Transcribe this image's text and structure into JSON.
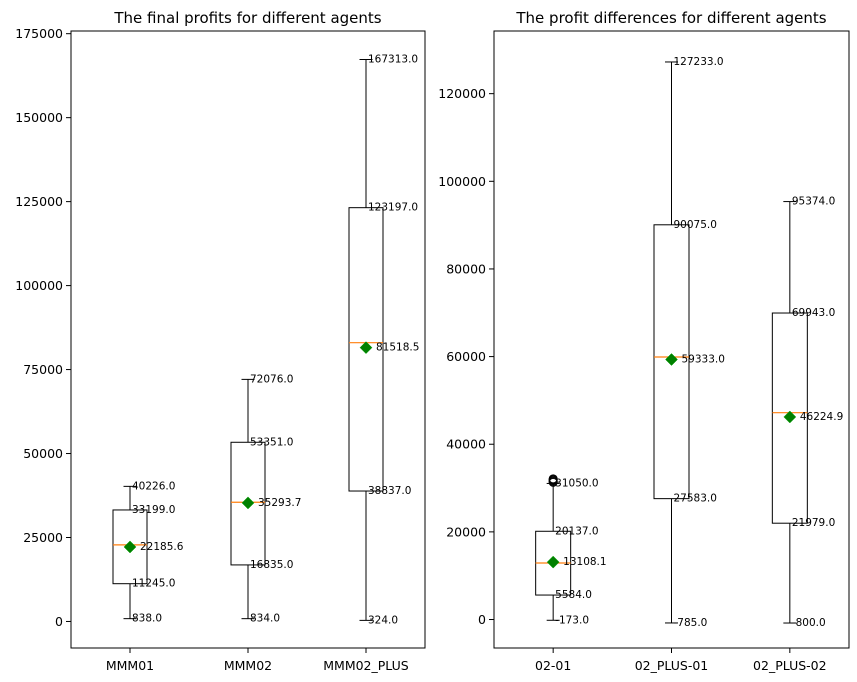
{
  "chart_data": [
    {
      "type": "box",
      "title": "The final profits for different agents",
      "categories": [
        "MMM01",
        "MMM02",
        "MMM02_PLUS"
      ],
      "ylim": [
        -7900,
        175800
      ],
      "yticks": [
        0,
        25000,
        50000,
        75000,
        100000,
        125000,
        150000,
        175000
      ],
      "ytick_labels": [
        "0",
        "25000",
        "50000",
        "75000",
        "100000",
        "125000",
        "150000",
        "175000"
      ],
      "grid": false,
      "boxes": [
        {
          "min": 838,
          "q1": 11245,
          "median": 22800,
          "q3": 33199,
          "max": 40226,
          "mean": 22185.6,
          "labels": {
            "max": "40226.0",
            "q3": "33199.0",
            "mean": "22185.6",
            "q1": "11245.0",
            "min": "838.0"
          },
          "outliers": []
        },
        {
          "min": 834,
          "q1": 16835,
          "median": 35500,
          "q3": 53351,
          "max": 72076,
          "mean": 35293.7,
          "labels": {
            "max": "72076.0",
            "q3": "53351.0",
            "mean": "35293.7",
            "q1": "16835.0",
            "min": "834.0"
          },
          "outliers": []
        },
        {
          "min": 324,
          "q1": 38837,
          "median": 83000,
          "q3": 123197,
          "max": 167313,
          "mean": 81518.5,
          "labels": {
            "max": "167313.0",
            "q3": "123197.0",
            "mean": "81518.5",
            "q1": "38837.0",
            "min": "324.0"
          },
          "outliers": []
        }
      ]
    },
    {
      "type": "box",
      "title": "The profit differences for different agents",
      "categories": [
        "02-01",
        "02_PLUS-01",
        "02_PLUS-02"
      ],
      "ylim": [
        -6500,
        134300
      ],
      "yticks": [
        0,
        20000,
        40000,
        60000,
        80000,
        100000,
        120000
      ],
      "ytick_labels": [
        "0",
        "20000",
        "40000",
        "60000",
        "80000",
        "100000",
        "120000"
      ],
      "grid": false,
      "boxes": [
        {
          "min": -173,
          "q1": 5584,
          "median": 12900,
          "q3": 20137,
          "max": 31050,
          "mean": 13108.1,
          "labels": {
            "max": "31050.0",
            "q3": "20137.0",
            "mean": "13108.1",
            "q1": "5584.0",
            "min": "-173.0"
          },
          "outliers": [
            31300,
            31500,
            31700,
            31900,
            32100
          ]
        },
        {
          "min": -785,
          "q1": 27583,
          "median": 59900,
          "q3": 90075,
          "max": 127233,
          "mean": 59333.0,
          "labels": {
            "max": "127233.0",
            "q3": "90075.0",
            "mean": "59333.0",
            "q1": "27583.0",
            "min": "-785.0"
          },
          "outliers": []
        },
        {
          "min": -800,
          "q1": 21979,
          "median": 47200,
          "q3": 69943,
          "max": 95374,
          "mean": 46224.9,
          "labels": {
            "max": "95374.0",
            "q3": "69943.0",
            "mean": "46224.9",
            "q1": "21979.0",
            "min": "-800.0"
          },
          "outliers": []
        }
      ]
    }
  ],
  "colors": {
    "box": "#000000",
    "median": "#ff7f0e",
    "mean_marker": "#008000"
  }
}
